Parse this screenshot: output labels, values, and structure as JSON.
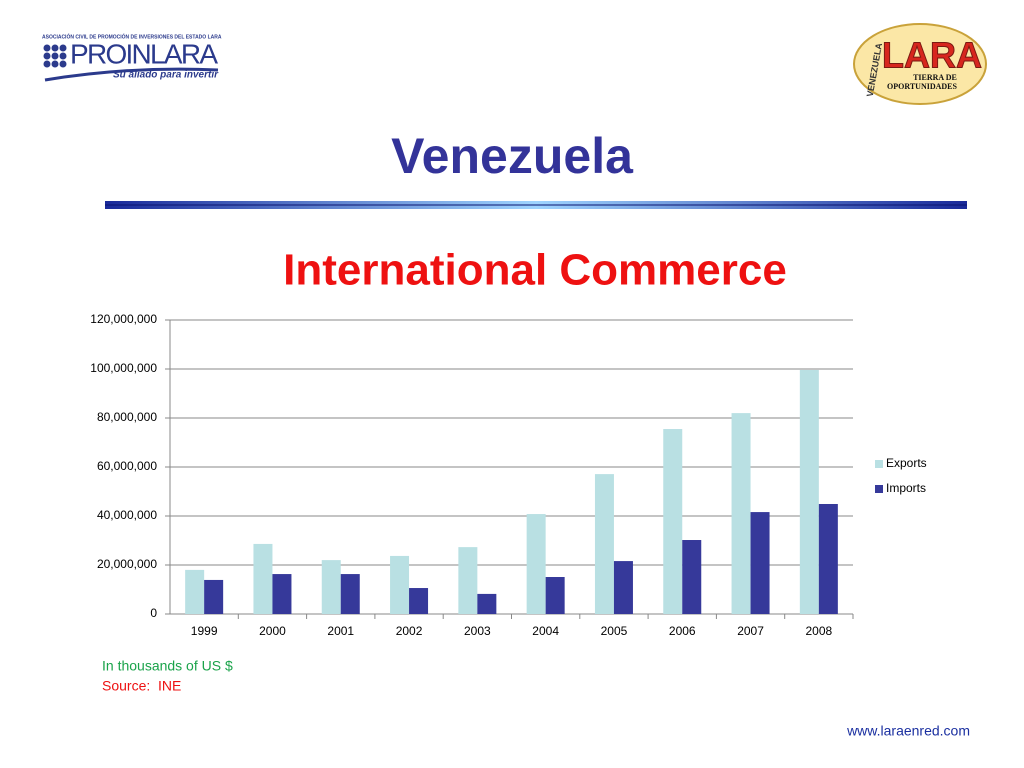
{
  "header": {
    "left_logo": {
      "association": "ASOCIACIÓN CIVIL DE PROMOCIÓN DE INVERSIONES DEL ESTADO LARA",
      "name": "PROINLARA",
      "tagline": "Su aliado para invertir"
    },
    "right_logo": {
      "country": "VENEZUELA",
      "name": "LARA",
      "tagline_1": "TIERRA DE",
      "tagline_2": "OPORTUNIDADES"
    },
    "title": "Venezuela"
  },
  "chart_data": {
    "type": "bar",
    "title": "International Commerce",
    "categories": [
      "1999",
      "2000",
      "2001",
      "2002",
      "2003",
      "2004",
      "2005",
      "2006",
      "2007",
      "2008"
    ],
    "series": [
      {
        "name": "Exports",
        "color": "#b9e0e3",
        "values": [
          18000000,
          28600000,
          22000000,
          23700000,
          27300000,
          40800000,
          57100000,
          75500000,
          82000000,
          99600000
        ]
      },
      {
        "name": "Imports",
        "color": "#36399a",
        "values": [
          13900000,
          16300000,
          16300000,
          10600000,
          8200000,
          15100000,
          21600000,
          30200000,
          41600000,
          44900000
        ]
      }
    ],
    "ylim": [
      0,
      120000000
    ],
    "yticks": [
      0,
      {
        "value": 20000000,
        "label": "20,000,000"
      },
      {
        "value": 40000000,
        "label": "40,000,000"
      },
      {
        "value": 60000000,
        "label": "60,000,000"
      },
      {
        "value": 80000000,
        "label": "80,000,000"
      },
      {
        "value": 100000000,
        "label": "100,000,000"
      },
      {
        "value": 120000000,
        "label": "120,000,000"
      }
    ],
    "grid": true,
    "legend": "right"
  },
  "notes": {
    "units": "In thousands of US $",
    "source": "Source:  INE"
  },
  "footer": {
    "url": "www.laraenred.com"
  }
}
